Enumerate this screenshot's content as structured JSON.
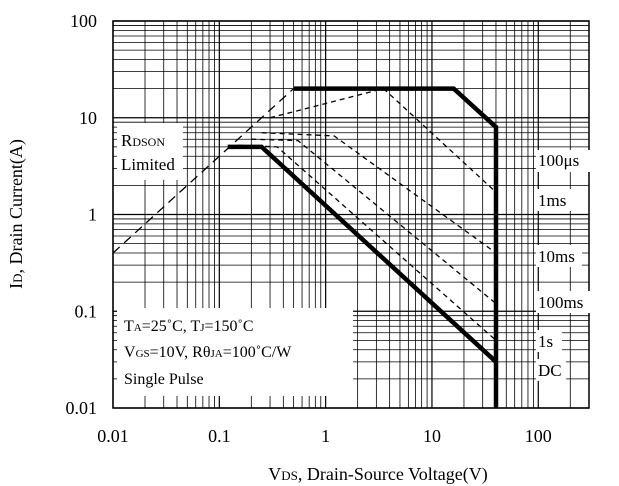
{
  "chart_data": {
    "type": "line",
    "title": "",
    "xlabel": "VDS, Drain-Source Voltage(V)",
    "xlabel_parts": [
      "V",
      "DS",
      ", Drain-Source Voltage(V)"
    ],
    "ylabel": "ID, Drain Current(A)",
    "ylabel_parts": [
      "I",
      "D",
      ", Drain Current(A)"
    ],
    "xscale": "log",
    "yscale": "log",
    "xlim": [
      0.01,
      300
    ],
    "ylim": [
      0.01,
      100
    ],
    "grid": true,
    "x_ticks": [
      0.01,
      0.1,
      1,
      10,
      100
    ],
    "x_tick_labels": [
      "0.01",
      "0.1",
      "1",
      "10",
      "100"
    ],
    "y_ticks": [
      0.01,
      0.1,
      1,
      10,
      100
    ],
    "y_tick_labels": [
      "0.01",
      "0.1",
      "1",
      "10",
      "100"
    ],
    "series": [
      {
        "name": "RDSON Limited",
        "style": "dashed",
        "x": [
          0.01,
          0.5
        ],
        "y": [
          0.4,
          20
        ]
      },
      {
        "name": "100µs",
        "style": "thick",
        "x": [
          0.5,
          16,
          40,
          40
        ],
        "y": [
          20,
          20,
          8,
          0.01
        ]
      },
      {
        "name": "1ms",
        "style": "dashed",
        "x": [
          0.3,
          3.5,
          40
        ],
        "y": [
          10,
          20,
          1.7
        ]
      },
      {
        "name": "10ms",
        "style": "dashed",
        "x": [
          0.25,
          1.2,
          40
        ],
        "y": [
          7,
          6.5,
          0.4
        ]
      },
      {
        "name": "100ms",
        "style": "dashed",
        "x": [
          0.2,
          0.55,
          40
        ],
        "y": [
          6,
          5.8,
          0.12
        ]
      },
      {
        "name": "1s",
        "style": "dashed",
        "x": [
          0.15,
          0.35,
          40
        ],
        "y": [
          5.2,
          5.0,
          0.05
        ]
      },
      {
        "name": "DC",
        "style": "thick",
        "x": [
          0.12,
          0.25,
          40
        ],
        "y": [
          5,
          5,
          0.03
        ]
      }
    ],
    "annotations": {
      "rdson_parts": [
        "R",
        "DSON"
      ],
      "rdson_line2": "Limited",
      "cond_line1_parts": [
        "T",
        "A",
        "=25˚C, T",
        "J",
        "=150˚C"
      ],
      "cond_line2_parts": [
        "V",
        "GS",
        "=10V, Rθ",
        "JA",
        "=100˚C/W"
      ],
      "cond_line3": "Single Pulse",
      "label_100us": "100μs",
      "label_1ms": "1ms",
      "label_10ms": "10ms",
      "label_100ms": "100ms",
      "label_1s": "1s",
      "label_dc": "DC"
    }
  }
}
